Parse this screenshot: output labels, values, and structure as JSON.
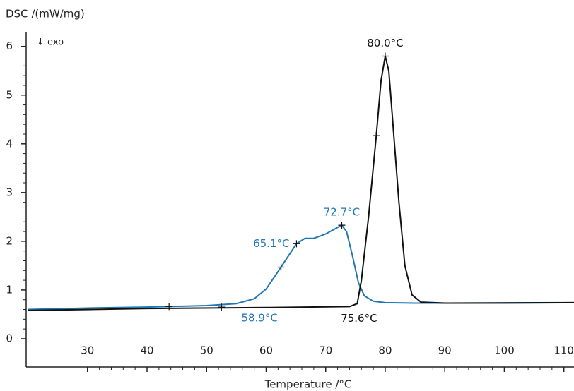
{
  "chart_data": {
    "type": "line",
    "y_label": "DSC /(mW/mg)",
    "x_label": "Temperature /°C",
    "direction_note": "↓ exo",
    "xlim": [
      19.7,
      111.7
    ],
    "ylim": [
      -0.58,
      6.3
    ],
    "xticks": [
      30,
      40,
      50,
      60,
      70,
      80,
      90,
      100,
      110
    ],
    "yticks": [
      0,
      1,
      2,
      3,
      4,
      5,
      6
    ],
    "series": [
      {
        "color": "#1f77b4",
        "x": [
          20,
          30,
          40,
          50,
          55,
          58,
          60,
          62.5,
          65.1,
          66.5,
          68,
          70,
          72.7,
          73.5,
          74.5,
          75.5,
          76.5,
          78,
          80,
          85,
          100,
          111.7
        ],
        "values": [
          0.6,
          0.63,
          0.65,
          0.68,
          0.72,
          0.82,
          1.02,
          1.47,
          1.95,
          2.06,
          2.06,
          2.15,
          2.33,
          2.2,
          1.7,
          1.15,
          0.88,
          0.77,
          0.74,
          0.73,
          0.73,
          0.74
        ],
        "markers": [
          [
            52.5,
            0.65
          ],
          [
            62.5,
            1.47
          ],
          [
            65.1,
            1.95
          ],
          [
            72.7,
            2.33
          ]
        ]
      },
      {
        "color": "#111111",
        "x": [
          20,
          40,
          60,
          74,
          75.3,
          76,
          77.2,
          78.5,
          79.3,
          80,
          80.6,
          81.3,
          82.3,
          83.3,
          84.5,
          86,
          90,
          111.7
        ],
        "values": [
          0.58,
          0.62,
          0.64,
          0.66,
          0.72,
          1.2,
          2.5,
          4.17,
          5.3,
          5.8,
          5.5,
          4.4,
          2.8,
          1.5,
          0.9,
          0.75,
          0.73,
          0.74
        ],
        "markers": [
          [
            43.7,
            0.66
          ],
          [
            78.5,
            4.17
          ],
          [
            80,
            5.8
          ]
        ]
      }
    ],
    "annotations": [
      {
        "text": "80.0°C",
        "x": 80,
        "y": 5.8,
        "color": "#111111",
        "position": "above"
      },
      {
        "text": "72.7°C",
        "x": 72.7,
        "y": 2.33,
        "color": "#1f77b4",
        "position": "above"
      },
      {
        "text": "65.1°C",
        "x": 65.1,
        "y": 1.95,
        "color": "#1f77b4",
        "position": "left"
      },
      {
        "text": "58.9°C",
        "x": 58.9,
        "y": 0.68,
        "color": "#1f77b4",
        "position": "below"
      },
      {
        "text": "75.6°C",
        "x": 75.6,
        "y": 0.67,
        "color": "#111111",
        "position": "below"
      }
    ]
  }
}
